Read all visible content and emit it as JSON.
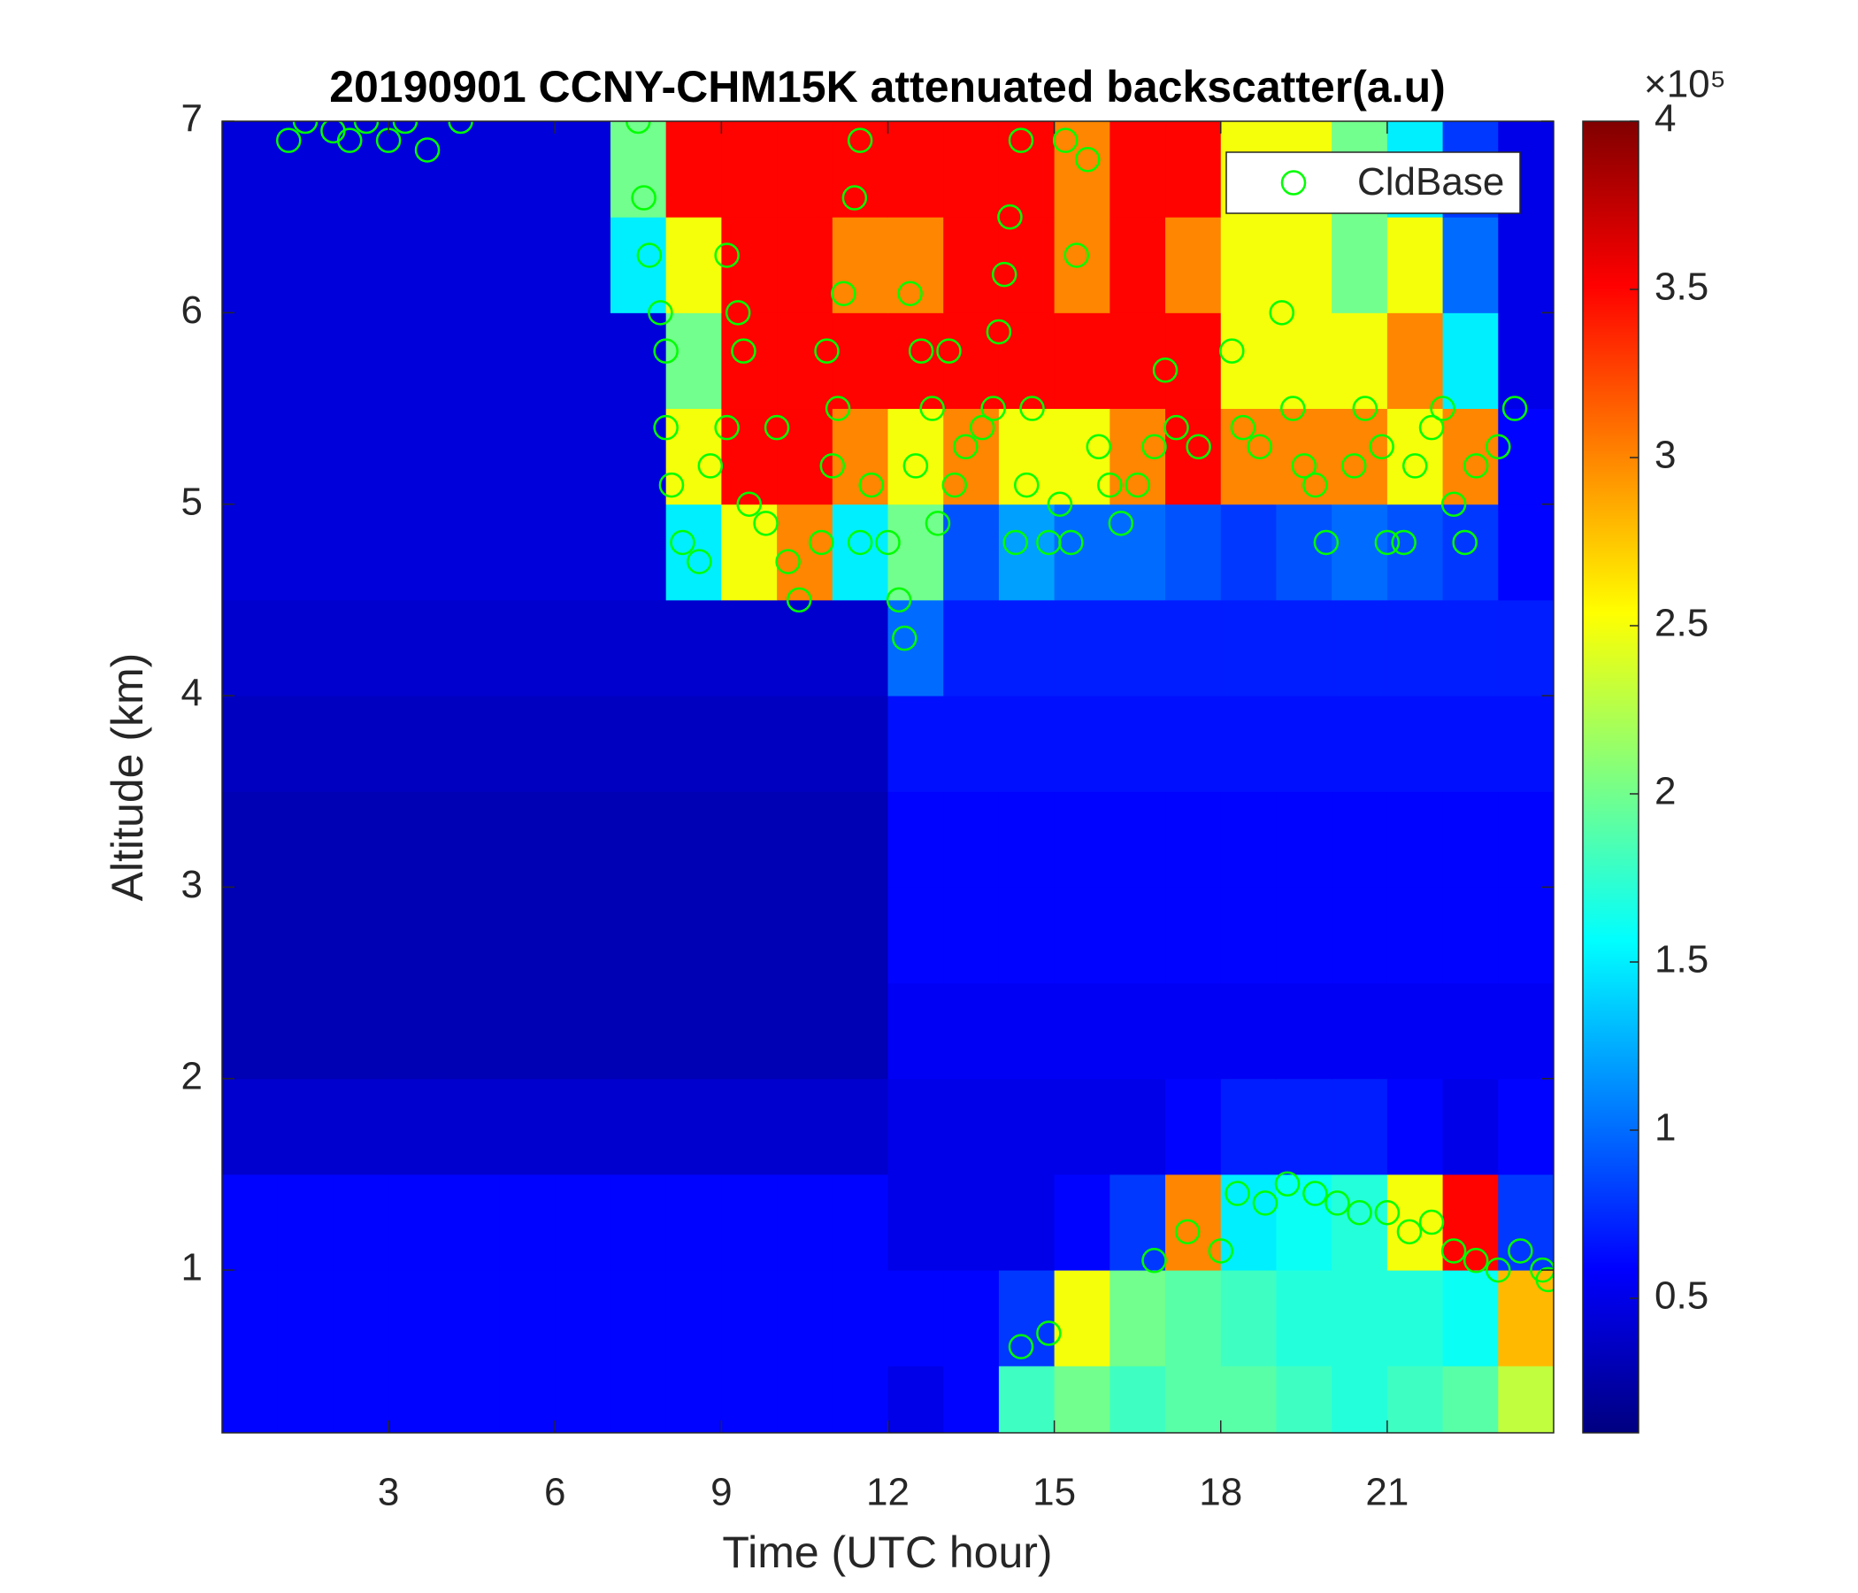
{
  "chart_data": {
    "type": "heatmap",
    "title": "20190901 CCNY-CHM15K attenuated backscatter(a.u)",
    "xlabel": "Time (UTC hour)",
    "ylabel": "Altitude (km)",
    "xlim": [
      0,
      24
    ],
    "xticks": [
      3,
      6,
      9,
      12,
      15,
      18,
      21
    ],
    "ylim": [
      0.15,
      7
    ],
    "yticks": [
      1,
      2,
      3,
      4,
      5,
      6,
      7
    ],
    "colormap": "jet",
    "clim": [
      0.1,
      4
    ],
    "cticks": [
      0.5,
      1,
      1.5,
      2,
      2.5,
      3,
      3.5,
      4
    ],
    "colorbar_exponent": "×10⁵",
    "x": [
      0.5,
      1.5,
      2.5,
      3.5,
      4.5,
      5.5,
      6.5,
      7.5,
      8.5,
      9.5,
      10.5,
      11.5,
      12.5,
      13.5,
      14.5,
      15.5,
      16.5,
      17.5,
      18.5,
      19.5,
      20.5,
      21.5,
      22.5,
      23.5
    ],
    "y": [
      0.25,
      0.75,
      1.25,
      1.75,
      2.25,
      2.75,
      3.25,
      3.75,
      4.25,
      4.75,
      5.25,
      5.75,
      6.25,
      6.75
    ],
    "z": [
      [
        0.6,
        0.6,
        0.6,
        0.6,
        0.6,
        0.6,
        0.6,
        0.6,
        0.6,
        0.6,
        0.6,
        0.6,
        0.5,
        0.6,
        1.8,
        2.0,
        1.8,
        1.9,
        1.9,
        1.8,
        1.7,
        1.8,
        1.9,
        2.3
      ],
      [
        0.6,
        0.6,
        0.6,
        0.6,
        0.6,
        0.6,
        0.6,
        0.6,
        0.6,
        0.6,
        0.6,
        0.6,
        0.6,
        0.6,
        0.8,
        2.5,
        2.0,
        1.9,
        1.8,
        1.7,
        1.7,
        1.7,
        1.6,
        2.8
      ],
      [
        0.6,
        0.6,
        0.6,
        0.6,
        0.6,
        0.6,
        0.6,
        0.6,
        0.6,
        0.6,
        0.6,
        0.6,
        0.5,
        0.5,
        0.5,
        0.6,
        0.8,
        3.0,
        1.5,
        1.6,
        1.7,
        2.5,
        3.5,
        0.8
      ],
      [
        0.4,
        0.4,
        0.4,
        0.4,
        0.4,
        0.4,
        0.4,
        0.4,
        0.4,
        0.4,
        0.4,
        0.4,
        0.5,
        0.5,
        0.5,
        0.5,
        0.5,
        0.6,
        0.7,
        0.7,
        0.7,
        0.6,
        0.5,
        0.6
      ],
      [
        0.3,
        0.3,
        0.3,
        0.3,
        0.3,
        0.3,
        0.3,
        0.3,
        0.3,
        0.3,
        0.3,
        0.3,
        0.55,
        0.55,
        0.55,
        0.55,
        0.55,
        0.55,
        0.55,
        0.55,
        0.55,
        0.55,
        0.55,
        0.55
      ],
      [
        0.3,
        0.3,
        0.3,
        0.3,
        0.3,
        0.3,
        0.3,
        0.3,
        0.3,
        0.3,
        0.3,
        0.3,
        0.6,
        0.6,
        0.6,
        0.6,
        0.6,
        0.6,
        0.6,
        0.6,
        0.6,
        0.6,
        0.6,
        0.6
      ],
      [
        0.3,
        0.3,
        0.3,
        0.3,
        0.3,
        0.3,
        0.3,
        0.3,
        0.3,
        0.3,
        0.3,
        0.3,
        0.6,
        0.6,
        0.6,
        0.6,
        0.6,
        0.6,
        0.6,
        0.6,
        0.6,
        0.6,
        0.6,
        0.6
      ],
      [
        0.35,
        0.35,
        0.35,
        0.35,
        0.35,
        0.35,
        0.35,
        0.35,
        0.35,
        0.35,
        0.35,
        0.35,
        0.65,
        0.65,
        0.65,
        0.65,
        0.65,
        0.65,
        0.65,
        0.65,
        0.65,
        0.65,
        0.65,
        0.65
      ],
      [
        0.4,
        0.4,
        0.4,
        0.4,
        0.4,
        0.4,
        0.4,
        0.4,
        0.4,
        0.4,
        0.4,
        0.4,
        1.0,
        0.7,
        0.7,
        0.7,
        0.7,
        0.7,
        0.7,
        0.7,
        0.7,
        0.7,
        0.7,
        0.7
      ],
      [
        0.45,
        0.45,
        0.45,
        0.45,
        0.45,
        0.45,
        0.45,
        0.45,
        1.5,
        2.5,
        3,
        1.5,
        2,
        0.9,
        1.2,
        1.0,
        1.0,
        0.9,
        0.8,
        0.9,
        1.0,
        0.9,
        0.8,
        0.6
      ],
      [
        0.45,
        0.45,
        0.45,
        0.45,
        0.45,
        0.45,
        0.45,
        0.45,
        2.5,
        3.5,
        3.5,
        3,
        2.5,
        3,
        2.5,
        2.5,
        3,
        3.5,
        3,
        3,
        3,
        2.5,
        3,
        0.6
      ],
      [
        0.45,
        0.45,
        0.45,
        0.45,
        0.45,
        0.45,
        0.45,
        0.45,
        2,
        3.5,
        3.5,
        3.5,
        3.5,
        3.5,
        3.5,
        3.5,
        3.5,
        3.5,
        2.5,
        2.5,
        2.5,
        3,
        1.5,
        0.5
      ],
      [
        0.45,
        0.45,
        0.45,
        0.45,
        0.45,
        0.45,
        0.45,
        1.5,
        2.5,
        3.5,
        3.5,
        3,
        3,
        3.5,
        3.5,
        3,
        3.5,
        3,
        2.5,
        2.5,
        2,
        2.5,
        1,
        0.5
      ],
      [
        0.45,
        0.45,
        0.45,
        0.45,
        0.45,
        0.45,
        0.45,
        2,
        3.5,
        3.5,
        3.5,
        3.5,
        3.5,
        3.5,
        3.5,
        3,
        3.5,
        3.5,
        2.5,
        2.5,
        2,
        1.5,
        0.8,
        0.5
      ]
    ],
    "legend": "northeast",
    "series": [
      {
        "name": "CldBase",
        "type": "scatter",
        "color": "#00ff00",
        "x": [
          1.2,
          1.5,
          2,
          2.3,
          2.6,
          3,
          3.3,
          3.7,
          4.3,
          7.5,
          7.6,
          7.7,
          7.9,
          8.0,
          8.0,
          8.1,
          8.3,
          8.6,
          9.1,
          9.3,
          9.4,
          8.8,
          9.1,
          9.5,
          9.8,
          10.0,
          10.2,
          10.4,
          10.8,
          11.0,
          11.1,
          11.5,
          11.2,
          11.4,
          11.5,
          10.9,
          11.7,
          12.0,
          12.2,
          12.3,
          12.5,
          12.4,
          12.6,
          12.8,
          13.1,
          12.9,
          13.2,
          13.4,
          13.7,
          14.0,
          14.1,
          13.9,
          14.3,
          14.5,
          14.6,
          14.2,
          14.4,
          14.9,
          15.1,
          15.3,
          15.4,
          15.6,
          15.2,
          15.8,
          16.0,
          16.2,
          16.5,
          16.8,
          17.0,
          17.2,
          17.6,
          18.2,
          18.4,
          18.7,
          19.1,
          19.3,
          19.5,
          19.7,
          19.9,
          20.4,
          20.6,
          20.9,
          21.0,
          21.3,
          21.5,
          21.8,
          22.0,
          22.2,
          22.4,
          22.6,
          23.0,
          23.3,
          14.4,
          14.9,
          16.8,
          17.4,
          18.0,
          18.3,
          18.8,
          19.2,
          19.7,
          20.1,
          20.5,
          21.0,
          21.4,
          21.8,
          22.2,
          22.6,
          23.0,
          23.4,
          23.8,
          23.9
        ],
        "y": [
          6.9,
          7,
          6.95,
          6.9,
          7,
          6.9,
          7,
          6.85,
          7,
          7,
          6.6,
          6.3,
          6.0,
          5.8,
          5.4,
          5.1,
          4.8,
          4.7,
          6.3,
          6.0,
          5.8,
          5.2,
          5.4,
          5.0,
          4.9,
          5.4,
          4.7,
          4.5,
          4.8,
          5.2,
          5.5,
          4.8,
          6.1,
          6.6,
          6.9,
          5.8,
          5.1,
          4.8,
          4.5,
          4.3,
          5.2,
          6.1,
          5.8,
          5.5,
          5.8,
          4.9,
          5.1,
          5.3,
          5.4,
          5.9,
          6.2,
          5.5,
          4.8,
          5.1,
          5.5,
          6.5,
          6.9,
          4.8,
          5.0,
          4.8,
          6.3,
          6.8,
          6.9,
          5.3,
          5.1,
          4.9,
          5.1,
          5.3,
          5.7,
          5.4,
          5.3,
          5.8,
          5.4,
          5.3,
          6.0,
          5.5,
          5.2,
          5.1,
          4.8,
          5.2,
          5.5,
          5.3,
          4.8,
          4.8,
          5.2,
          5.4,
          5.5,
          5.0,
          4.8,
          5.2,
          5.3,
          5.5,
          0.6,
          0.67,
          1.05,
          1.2,
          1.1,
          1.4,
          1.35,
          1.45,
          1.4,
          1.35,
          1.3,
          1.3,
          1.2,
          1.25,
          1.1,
          1.05,
          1.0,
          1.1,
          1.0,
          0.95
        ]
      }
    ]
  }
}
